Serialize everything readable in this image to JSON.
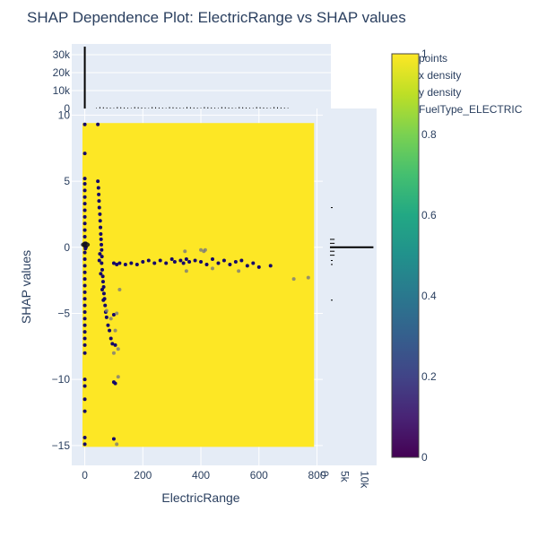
{
  "chart_data": {
    "type": "scatter",
    "title": "SHAP Dependence Plot: ElectricRange vs SHAP values",
    "xlabel": "ElectricRange",
    "ylabel": "SHAP values",
    "xlim": [
      -45,
      820
    ],
    "ylim": [
      -16.5,
      10.5
    ],
    "x_ticks": [
      "0",
      "200",
      "400",
      "600",
      "800"
    ],
    "x_tick_values": [
      0,
      200,
      400,
      600,
      800
    ],
    "y_ticks": [
      "10",
      "5",
      "0",
      "−5",
      "−10",
      "−15"
    ],
    "y_tick_values": [
      10,
      5,
      0,
      -5,
      -10,
      -15
    ],
    "top_hist": {
      "ylim": [
        0,
        36000
      ],
      "y_ticks": [
        "30k",
        "20k",
        "10k",
        "0"
      ],
      "y_tick_values": [
        30000,
        20000,
        10000,
        0
      ]
    },
    "right_hist": {
      "xlim": [
        0,
        13000
      ],
      "x_ticks": [
        "0",
        "5k",
        "10k"
      ],
      "x_tick_values": [
        0,
        5000,
        10000
      ]
    },
    "legend": {
      "position": "top-right",
      "entries": [
        "points",
        "x density",
        "y density",
        "FuelType_ELECTRIC"
      ]
    },
    "colorbar": {
      "colorscale": "viridis",
      "range": [
        0,
        1
      ],
      "ticks": [
        "1",
        "0.8",
        "0.6",
        "0.4",
        "0.2",
        "0"
      ],
      "tick_values": [
        1,
        0.8,
        0.6,
        0.4,
        0.2,
        0
      ]
    },
    "background_fill": {
      "color": "#fde725",
      "x_range": [
        -8,
        790
      ],
      "y_range": [
        -15.1,
        9.4
      ]
    },
    "series": [
      {
        "name": "FuelType_ELECTRIC",
        "color_value": 0,
        "points": [
          [
            0,
            9.3
          ],
          [
            0,
            7.1
          ],
          [
            0,
            5.2
          ],
          [
            0,
            4.8
          ],
          [
            0,
            4.3
          ],
          [
            0,
            3.8
          ],
          [
            0,
            3.3
          ],
          [
            0,
            2.8
          ],
          [
            0,
            2.3
          ],
          [
            0,
            1.8
          ],
          [
            0,
            1.3
          ],
          [
            0,
            0.8
          ],
          [
            0,
            0.3
          ],
          [
            0,
            0.1
          ],
          [
            0,
            -0.4
          ],
          [
            0,
            -0.9
          ],
          [
            0,
            -1.4
          ],
          [
            0,
            -1.9
          ],
          [
            0,
            -2.4
          ],
          [
            0,
            -2.9
          ],
          [
            0,
            -3.4
          ],
          [
            0,
            -3.9
          ],
          [
            0,
            -4.4
          ],
          [
            0,
            -4.9
          ],
          [
            0,
            -5.4
          ],
          [
            0,
            -5.9
          ],
          [
            0,
            -6.4
          ],
          [
            0,
            -6.9
          ],
          [
            0,
            -7.4
          ],
          [
            0,
            -8.0
          ],
          [
            0,
            -10.0
          ],
          [
            0,
            -10.5
          ],
          [
            0,
            -11.5
          ],
          [
            0,
            -12.4
          ],
          [
            0,
            -14.4
          ],
          [
            0,
            -14.9
          ],
          [
            3,
            0.3
          ],
          [
            -2,
            0.2
          ],
          [
            4,
            0.0
          ],
          [
            2,
            -0.1
          ],
          [
            45,
            9.3
          ],
          [
            45,
            5.0
          ],
          [
            47,
            4.5
          ],
          [
            48,
            4.0
          ],
          [
            49,
            3.5
          ],
          [
            50,
            3.0
          ],
          [
            52,
            2.5
          ],
          [
            53,
            2.0
          ],
          [
            54,
            1.5
          ],
          [
            55,
            1.0
          ],
          [
            56,
            0.6
          ],
          [
            57,
            0.2
          ],
          [
            58,
            -0.2
          ],
          [
            59,
            -0.7
          ],
          [
            58,
            -1.2
          ],
          [
            60,
            -1.7
          ],
          [
            62,
            -2.2
          ],
          [
            63,
            -2.6
          ],
          [
            65,
            -3.0
          ],
          [
            66,
            -3.5
          ],
          [
            68,
            -3.9
          ],
          [
            70,
            -4.4
          ],
          [
            72,
            -4.9
          ],
          [
            75,
            -5.3
          ],
          [
            80,
            -5.9
          ],
          [
            85,
            -6.3
          ],
          [
            90,
            -6.9
          ],
          [
            95,
            -7.3
          ],
          [
            100,
            -5.1
          ],
          [
            105,
            -7.4
          ],
          [
            100,
            -10.2
          ],
          [
            105,
            -10.3
          ],
          [
            100,
            -14.5
          ],
          [
            55,
            -2.0
          ],
          [
            50,
            -1.0
          ],
          [
            52,
            -0.5
          ],
          [
            60,
            -3.2
          ],
          [
            64,
            -4.0
          ],
          [
            100,
            -1.2
          ],
          [
            110,
            -1.3
          ],
          [
            120,
            -1.2
          ],
          [
            140,
            -1.3
          ],
          [
            160,
            -1.2
          ],
          [
            180,
            -1.3
          ],
          [
            200,
            -1.1
          ],
          [
            220,
            -1.0
          ],
          [
            240,
            -1.2
          ],
          [
            260,
            -1.0
          ],
          [
            280,
            -1.2
          ],
          [
            300,
            -0.9
          ],
          [
            310,
            -1.1
          ],
          [
            330,
            -1.0
          ],
          [
            340,
            -1.2
          ],
          [
            350,
            -0.9
          ],
          [
            360,
            -1.1
          ],
          [
            380,
            -1.0
          ],
          [
            400,
            -1.1
          ],
          [
            420,
            -1.3
          ],
          [
            440,
            -0.9
          ],
          [
            460,
            -1.2
          ],
          [
            480,
            -1.0
          ],
          [
            500,
            -1.3
          ],
          [
            520,
            -1.1
          ],
          [
            540,
            -1.0
          ],
          [
            560,
            -1.4
          ],
          [
            580,
            -1.2
          ],
          [
            600,
            -1.5
          ],
          [
            640,
            -1.4
          ]
        ]
      },
      {
        "name": "points",
        "color_value": 0.5,
        "points": [
          [
            345,
            -0.3
          ],
          [
            400,
            -0.2
          ],
          [
            410,
            -0.3
          ],
          [
            415,
            -0.2
          ],
          [
            350,
            -1.8
          ],
          [
            440,
            -1.6
          ],
          [
            530,
            -1.8
          ],
          [
            720,
            -2.4
          ],
          [
            770,
            -2.3
          ],
          [
            120,
            -3.2
          ],
          [
            110,
            -5.0
          ],
          [
            115,
            -7.7
          ],
          [
            100,
            -8.0
          ],
          [
            115,
            -9.8
          ],
          [
            110,
            -14.9
          ],
          [
            105,
            -6.3
          ],
          [
            90,
            -5.4
          ],
          [
            75,
            -4.8
          ]
        ]
      }
    ]
  }
}
